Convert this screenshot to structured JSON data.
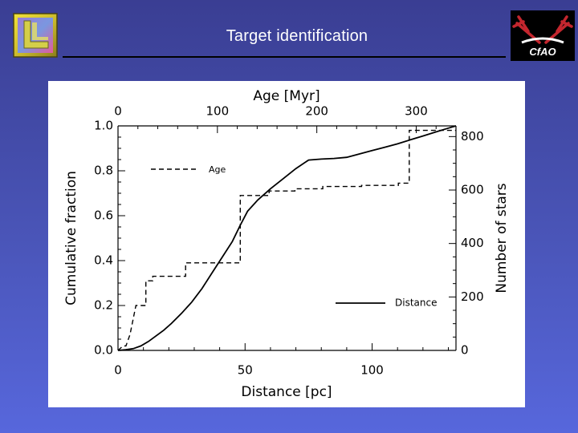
{
  "slide": {
    "title": "Target identification"
  },
  "logos": {
    "left": "llnl-logo",
    "right": "cfao-logo",
    "right_text": "CfAO"
  },
  "chart_data": {
    "type": "line",
    "title": "",
    "xlabel": "Distance [pc]",
    "ylabel": "Cumulative fraction",
    "top_xlabel": "Age [Myr]",
    "right_ylabel": "Number of stars",
    "xlim": [
      0,
      133
    ],
    "ylim": [
      0.0,
      1.0
    ],
    "top_xlim": [
      0,
      340
    ],
    "right_ylim": [
      0,
      840
    ],
    "x_ticks": [
      0,
      50,
      100
    ],
    "x_tick_labels": [
      "0",
      "50",
      "100"
    ],
    "y_ticks": [
      0.0,
      0.2,
      0.4,
      0.6,
      0.8,
      1.0
    ],
    "y_tick_labels": [
      "0.0",
      "0.2",
      "0.4",
      "0.6",
      "0.8",
      "1.0"
    ],
    "top_ticks": [
      0,
      100,
      200,
      300
    ],
    "top_tick_labels": [
      "0",
      "100",
      "200",
      "300"
    ],
    "right_ticks": [
      0,
      200,
      400,
      600,
      800
    ],
    "right_tick_labels": [
      "0",
      "200",
      "400",
      "600",
      "800"
    ],
    "legend": [
      {
        "name": "Age",
        "style": "dashed",
        "position": "upper-left"
      },
      {
        "name": "Distance",
        "style": "solid",
        "position": "lower-right"
      }
    ],
    "grid": false,
    "series": [
      {
        "name": "Distance",
        "style": "solid",
        "axis": "bottom",
        "x": [
          0,
          3,
          6,
          9,
          12,
          15,
          18,
          21,
          25,
          29,
          33,
          37,
          41,
          45,
          48,
          51,
          55,
          60,
          65,
          70,
          75,
          80,
          85,
          90,
          95,
          100,
          105,
          110,
          115,
          120,
          125,
          130,
          133
        ],
        "values": [
          0.0,
          0.003,
          0.008,
          0.02,
          0.04,
          0.065,
          0.09,
          0.12,
          0.165,
          0.215,
          0.275,
          0.345,
          0.415,
          0.485,
          0.555,
          0.62,
          0.67,
          0.72,
          0.765,
          0.81,
          0.848,
          0.852,
          0.855,
          0.86,
          0.875,
          0.89,
          0.905,
          0.92,
          0.938,
          0.955,
          0.973,
          0.99,
          1.0
        ]
      },
      {
        "name": "Age",
        "style": "dashed",
        "axis": "top",
        "x": [
          0,
          5,
          8,
          12,
          12,
          18,
          18,
          28,
          28,
          35,
          35,
          68,
          68,
          123,
          123,
          152,
          152,
          178,
          178,
          206,
          206,
          245,
          245,
          282,
          282,
          293,
          293,
          340
        ],
        "values": [
          0.0,
          0.02,
          0.02,
          0.07,
          0.07,
          0.2,
          0.2,
          0.2,
          0.31,
          0.31,
          0.33,
          0.33,
          0.39,
          0.39,
          0.69,
          0.69,
          0.71,
          0.71,
          0.72,
          0.72,
          0.73,
          0.73,
          0.735,
          0.735,
          0.745,
          0.745,
          0.98,
          0.98
        ]
      }
    ]
  }
}
